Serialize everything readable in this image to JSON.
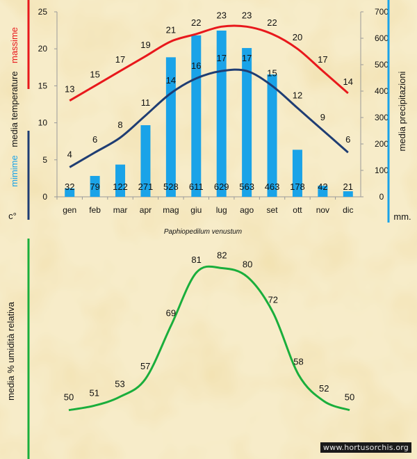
{
  "colors": {
    "background": "#f7ecc9",
    "max_temp": "#e8181c",
    "min_temp": "#1f3d73",
    "precip": "#1aa3e8",
    "humidity": "#1aae3c",
    "text": "#111111",
    "axis": "#999999"
  },
  "chart_data": [
    {
      "type": "bar+line",
      "categories": [
        "gen",
        "feb",
        "mar",
        "apr",
        "mag",
        "giu",
        "lug",
        "ago",
        "set",
        "ott",
        "nov",
        "dic"
      ],
      "series": [
        {
          "name": "massime",
          "kind": "line",
          "axis": "left",
          "values": [
            13,
            15,
            17,
            19,
            21,
            22,
            23,
            23,
            22,
            20,
            17,
            14
          ]
        },
        {
          "name": "mimime",
          "kind": "line",
          "axis": "left",
          "values": [
            4,
            6,
            8,
            11,
            14,
            16,
            17,
            17,
            15,
            12,
            9,
            6
          ]
        },
        {
          "name": "media precipitazioni",
          "kind": "bar",
          "axis": "right",
          "values": [
            32,
            79,
            122,
            271,
            528,
            611,
            629,
            563,
            463,
            178,
            42,
            21
          ]
        }
      ],
      "left_axis": {
        "label_top": "massime",
        "label_mid": "media temperature",
        "label_bottom": "mimime",
        "unit": "c°",
        "ylim": [
          0,
          25
        ],
        "ticks": [
          "0",
          "5",
          "10",
          "15",
          "20",
          "25"
        ]
      },
      "right_axis": {
        "label": "media precipitazioni",
        "unit": "mm.",
        "ylim": [
          0,
          700
        ],
        "ticks": [
          "0",
          "100",
          "200",
          "300",
          "400",
          "500",
          "600",
          "700"
        ]
      },
      "grid": false
    },
    {
      "type": "line",
      "title": "Paphiopedilum venustum",
      "ylabel": "media % umidità relativa",
      "series": [
        {
          "name": "",
          "values": [
            50,
            51,
            53,
            57,
            69,
            81,
            82,
            80,
            72,
            58,
            52,
            50
          ]
        }
      ],
      "ylim": [
        44,
        86
      ],
      "grid": false
    }
  ],
  "watermark": "www.hortusorchis.org"
}
